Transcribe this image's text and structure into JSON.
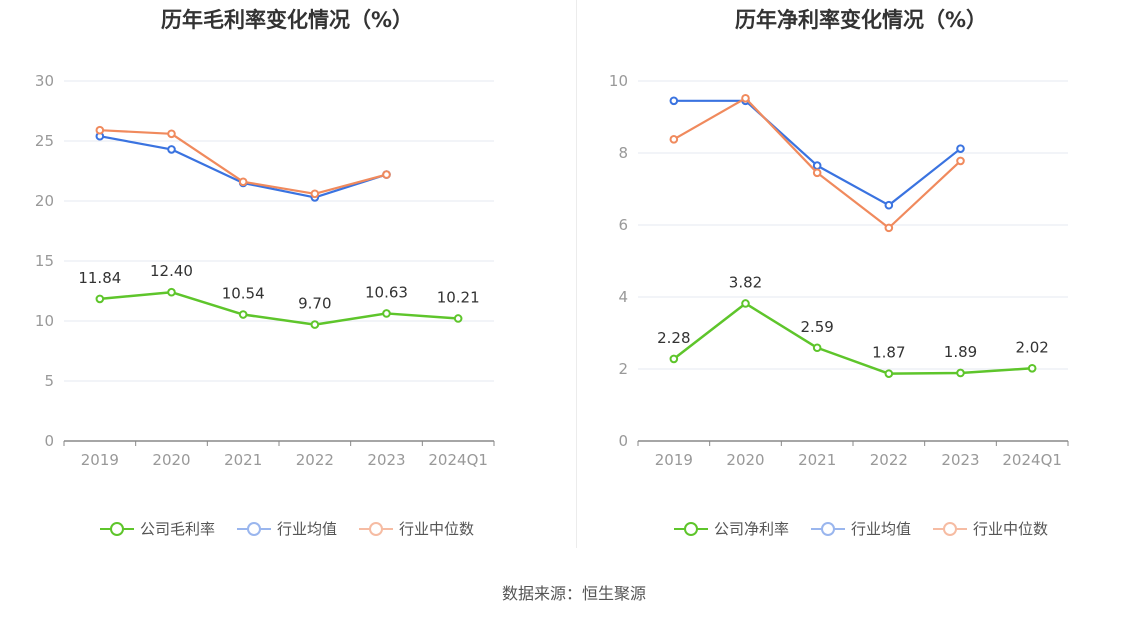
{
  "source_label": "数据来源：恒生聚源",
  "colors": {
    "company": "#5ec52b",
    "avg": "#3a73e0",
    "median": "#f08a5d",
    "grid": "#e6e8f0",
    "axis": "#999999",
    "text": "#333333"
  },
  "chart_data": [
    {
      "type": "line",
      "title": "历年毛利率变化情况（%）",
      "categories": [
        "2019",
        "2020",
        "2021",
        "2022",
        "2023",
        "2024Q1"
      ],
      "y_ticks": [
        "0",
        "5",
        "10",
        "15",
        "20",
        "25",
        "30"
      ],
      "ylim": [
        0,
        30
      ],
      "grid": true,
      "legend_position": "bottom",
      "series": [
        {
          "name": "公司毛利率",
          "color": "#5ec52b",
          "values": [
            11.84,
            12.4,
            10.54,
            9.7,
            10.63,
            10.21
          ],
          "data_labels": [
            "11.84",
            "12.40",
            "10.54",
            "9.70",
            "10.63",
            "10.21"
          ]
        },
        {
          "name": "行业均值",
          "color": "#3a73e0",
          "values": [
            25.4,
            24.3,
            21.5,
            20.3,
            22.2,
            null
          ]
        },
        {
          "name": "行业中位数",
          "color": "#f08a5d",
          "values": [
            25.9,
            25.6,
            21.6,
            20.6,
            22.2,
            null
          ]
        }
      ]
    },
    {
      "type": "line",
      "title": "历年净利率变化情况（%）",
      "categories": [
        "2019",
        "2020",
        "2021",
        "2022",
        "2023",
        "2024Q1"
      ],
      "y_ticks": [
        "0",
        "2",
        "4",
        "6",
        "8",
        "10"
      ],
      "ylim": [
        0,
        10
      ],
      "grid": true,
      "legend_position": "bottom",
      "series": [
        {
          "name": "公司净利率",
          "color": "#5ec52b",
          "values": [
            2.28,
            3.82,
            2.59,
            1.87,
            1.89,
            2.02
          ],
          "data_labels": [
            "2.28",
            "3.82",
            "2.59",
            "1.87",
            "1.89",
            "2.02"
          ]
        },
        {
          "name": "行业均值",
          "color": "#3a73e0",
          "values": [
            9.45,
            9.45,
            7.65,
            6.55,
            8.12,
            null
          ]
        },
        {
          "name": "行业中位数",
          "color": "#f08a5d",
          "values": [
            8.38,
            9.52,
            7.45,
            5.92,
            7.78,
            null
          ]
        }
      ]
    }
  ]
}
